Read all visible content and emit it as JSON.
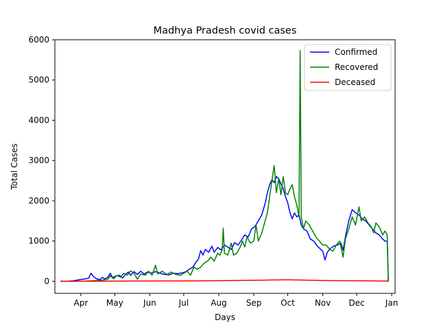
{
  "chart_data": {
    "type": "line",
    "title": "Madhya Pradesh covid cases",
    "xlabel": "Days",
    "ylabel": "Total Cases",
    "xlim": [
      "2020-03-09",
      "2021-01-04"
    ],
    "ylim": [
      -300,
      6000
    ],
    "x_ticks": [
      {
        "date": "2020-04-01",
        "label": "Apr"
      },
      {
        "date": "2020-05-01",
        "label": "May"
      },
      {
        "date": "2020-06-01",
        "label": "Jun"
      },
      {
        "date": "2020-07-01",
        "label": "Jul"
      },
      {
        "date": "2020-08-01",
        "label": "Aug"
      },
      {
        "date": "2020-09-01",
        "label": "Sep"
      },
      {
        "date": "2020-10-01",
        "label": "Oct"
      },
      {
        "date": "2020-11-01",
        "label": "Nov"
      },
      {
        "date": "2020-12-01",
        "label": "Dec"
      },
      {
        "date": "2021-01-01",
        "label": "Jan"
      }
    ],
    "y_ticks": [
      0,
      1000,
      2000,
      3000,
      4000,
      5000,
      6000
    ],
    "legend_position": "top-right",
    "series": [
      {
        "name": "Confirmed",
        "color": "#0000ff",
        "points": [
          [
            "2020-03-14",
            0
          ],
          [
            "2020-03-20",
            2
          ],
          [
            "2020-03-25",
            10
          ],
          [
            "2020-03-31",
            40
          ],
          [
            "2020-04-05",
            60
          ],
          [
            "2020-04-08",
            80
          ],
          [
            "2020-04-10",
            200
          ],
          [
            "2020-04-12",
            120
          ],
          [
            "2020-04-15",
            60
          ],
          [
            "2020-04-18",
            40
          ],
          [
            "2020-04-20",
            100
          ],
          [
            "2020-04-22",
            60
          ],
          [
            "2020-04-25",
            100
          ],
          [
            "2020-04-27",
            200
          ],
          [
            "2020-04-29",
            90
          ],
          [
            "2020-05-02",
            130
          ],
          [
            "2020-05-05",
            150
          ],
          [
            "2020-05-08",
            80
          ],
          [
            "2020-05-10",
            160
          ],
          [
            "2020-05-13",
            230
          ],
          [
            "2020-05-15",
            150
          ],
          [
            "2020-05-18",
            240
          ],
          [
            "2020-05-21",
            170
          ],
          [
            "2020-05-24",
            250
          ],
          [
            "2020-05-27",
            180
          ],
          [
            "2020-05-30",
            230
          ],
          [
            "2020-06-02",
            200
          ],
          [
            "2020-06-06",
            240
          ],
          [
            "2020-06-10",
            200
          ],
          [
            "2020-06-14",
            170
          ],
          [
            "2020-06-18",
            160
          ],
          [
            "2020-06-22",
            200
          ],
          [
            "2020-06-26",
            190
          ],
          [
            "2020-06-30",
            210
          ],
          [
            "2020-07-03",
            240
          ],
          [
            "2020-07-06",
            300
          ],
          [
            "2020-07-09",
            350
          ],
          [
            "2020-07-12",
            480
          ],
          [
            "2020-07-14",
            550
          ],
          [
            "2020-07-16",
            760
          ],
          [
            "2020-07-18",
            650
          ],
          [
            "2020-07-20",
            790
          ],
          [
            "2020-07-23",
            720
          ],
          [
            "2020-07-26",
            870
          ],
          [
            "2020-07-28",
            720
          ],
          [
            "2020-07-31",
            840
          ],
          [
            "2020-08-03",
            780
          ],
          [
            "2020-08-06",
            900
          ],
          [
            "2020-08-09",
            850
          ],
          [
            "2020-08-12",
            790
          ],
          [
            "2020-08-15",
            960
          ],
          [
            "2020-08-18",
            900
          ],
          [
            "2020-08-21",
            1020
          ],
          [
            "2020-08-24",
            1150
          ],
          [
            "2020-08-27",
            1100
          ],
          [
            "2020-08-30",
            1300
          ],
          [
            "2020-09-02",
            1360
          ],
          [
            "2020-09-05",
            1500
          ],
          [
            "2020-09-08",
            1650
          ],
          [
            "2020-09-11",
            1930
          ],
          [
            "2020-09-13",
            2200
          ],
          [
            "2020-09-15",
            2400
          ],
          [
            "2020-09-17",
            2520
          ],
          [
            "2020-09-19",
            2450
          ],
          [
            "2020-09-21",
            2600
          ],
          [
            "2020-09-23",
            2550
          ],
          [
            "2020-09-25",
            2420
          ],
          [
            "2020-09-27",
            2300
          ],
          [
            "2020-09-29",
            2100
          ],
          [
            "2020-10-01",
            1950
          ],
          [
            "2020-10-03",
            1700
          ],
          [
            "2020-10-05",
            1550
          ],
          [
            "2020-10-07",
            1700
          ],
          [
            "2020-10-09",
            1600
          ],
          [
            "2020-10-11",
            1650
          ],
          [
            "2020-10-13",
            1400
          ],
          [
            "2020-10-15",
            1300
          ],
          [
            "2020-10-18",
            1250
          ],
          [
            "2020-10-21",
            1050
          ],
          [
            "2020-10-24",
            1000
          ],
          [
            "2020-10-27",
            880
          ],
          [
            "2020-10-30",
            800
          ],
          [
            "2020-11-01",
            750
          ],
          [
            "2020-11-03",
            530
          ],
          [
            "2020-11-05",
            720
          ],
          [
            "2020-11-08",
            820
          ],
          [
            "2020-11-11",
            880
          ],
          [
            "2020-11-14",
            900
          ],
          [
            "2020-11-17",
            950
          ],
          [
            "2020-11-19",
            770
          ],
          [
            "2020-11-21",
            1100
          ],
          [
            "2020-11-24",
            1500
          ],
          [
            "2020-11-27",
            1780
          ],
          [
            "2020-11-30",
            1700
          ],
          [
            "2020-12-03",
            1650
          ],
          [
            "2020-12-06",
            1550
          ],
          [
            "2020-12-09",
            1500
          ],
          [
            "2020-12-12",
            1400
          ],
          [
            "2020-12-15",
            1300
          ],
          [
            "2020-12-18",
            1200
          ],
          [
            "2020-12-21",
            1150
          ],
          [
            "2020-12-24",
            1050
          ],
          [
            "2020-12-26",
            1000
          ],
          [
            "2020-12-28",
            1000
          ],
          [
            "2020-12-29",
            0
          ]
        ]
      },
      {
        "name": "Recovered",
        "color": "#008000",
        "points": [
          [
            "2020-03-14",
            0
          ],
          [
            "2020-03-25",
            0
          ],
          [
            "2020-04-05",
            5
          ],
          [
            "2020-04-10",
            10
          ],
          [
            "2020-04-15",
            20
          ],
          [
            "2020-04-20",
            30
          ],
          [
            "2020-04-25",
            50
          ],
          [
            "2020-04-27",
            140
          ],
          [
            "2020-04-30",
            60
          ],
          [
            "2020-05-03",
            150
          ],
          [
            "2020-05-06",
            100
          ],
          [
            "2020-05-09",
            200
          ],
          [
            "2020-05-12",
            150
          ],
          [
            "2020-05-15",
            260
          ],
          [
            "2020-05-18",
            200
          ],
          [
            "2020-05-21",
            50
          ],
          [
            "2020-05-24",
            180
          ],
          [
            "2020-05-28",
            150
          ],
          [
            "2020-05-31",
            250
          ],
          [
            "2020-06-03",
            150
          ],
          [
            "2020-06-06",
            400
          ],
          [
            "2020-06-08",
            180
          ],
          [
            "2020-06-12",
            250
          ],
          [
            "2020-06-16",
            170
          ],
          [
            "2020-06-20",
            230
          ],
          [
            "2020-06-24",
            170
          ],
          [
            "2020-06-28",
            150
          ],
          [
            "2020-07-01",
            200
          ],
          [
            "2020-07-04",
            250
          ],
          [
            "2020-07-07",
            150
          ],
          [
            "2020-07-10",
            350
          ],
          [
            "2020-07-13",
            300
          ],
          [
            "2020-07-16",
            350
          ],
          [
            "2020-07-19",
            450
          ],
          [
            "2020-07-22",
            500
          ],
          [
            "2020-07-25",
            600
          ],
          [
            "2020-07-28",
            500
          ],
          [
            "2020-07-31",
            700
          ],
          [
            "2020-08-02",
            650
          ],
          [
            "2020-08-04",
            780
          ],
          [
            "2020-08-05",
            1320
          ],
          [
            "2020-08-06",
            700
          ],
          [
            "2020-08-09",
            650
          ],
          [
            "2020-08-12",
            950
          ],
          [
            "2020-08-14",
            650
          ],
          [
            "2020-08-17",
            700
          ],
          [
            "2020-08-20",
            850
          ],
          [
            "2020-08-22",
            1000
          ],
          [
            "2020-08-24",
            850
          ],
          [
            "2020-08-26",
            1100
          ],
          [
            "2020-08-29",
            950
          ],
          [
            "2020-09-01",
            1000
          ],
          [
            "2020-09-03",
            1400
          ],
          [
            "2020-09-05",
            1000
          ],
          [
            "2020-09-08",
            1200
          ],
          [
            "2020-09-11",
            1500
          ],
          [
            "2020-09-13",
            1700
          ],
          [
            "2020-09-15",
            2100
          ],
          [
            "2020-09-17",
            2500
          ],
          [
            "2020-09-19",
            2870
          ],
          [
            "2020-09-21",
            2200
          ],
          [
            "2020-09-23",
            2550
          ],
          [
            "2020-09-25",
            2150
          ],
          [
            "2020-09-27",
            2600
          ],
          [
            "2020-09-29",
            2200
          ],
          [
            "2020-10-01",
            2150
          ],
          [
            "2020-10-03",
            2300
          ],
          [
            "2020-10-05",
            2400
          ],
          [
            "2020-10-07",
            2100
          ],
          [
            "2020-10-09",
            1900
          ],
          [
            "2020-10-11",
            1600
          ],
          [
            "2020-10-12",
            5730
          ],
          [
            "2020-10-13",
            1600
          ],
          [
            "2020-10-15",
            1300
          ],
          [
            "2020-10-17",
            1500
          ],
          [
            "2020-10-20",
            1400
          ],
          [
            "2020-10-23",
            1250
          ],
          [
            "2020-10-26",
            1100
          ],
          [
            "2020-10-29",
            1000
          ],
          [
            "2020-11-01",
            900
          ],
          [
            "2020-11-04",
            900
          ],
          [
            "2020-11-07",
            800
          ],
          [
            "2020-11-10",
            750
          ],
          [
            "2020-11-13",
            900
          ],
          [
            "2020-11-16",
            1000
          ],
          [
            "2020-11-19",
            600
          ],
          [
            "2020-11-21",
            1050
          ],
          [
            "2020-11-24",
            1300
          ],
          [
            "2020-11-27",
            1600
          ],
          [
            "2020-11-30",
            1400
          ],
          [
            "2020-12-01",
            1550
          ],
          [
            "2020-12-03",
            1850
          ],
          [
            "2020-12-05",
            1500
          ],
          [
            "2020-12-08",
            1600
          ],
          [
            "2020-12-11",
            1450
          ],
          [
            "2020-12-14",
            1350
          ],
          [
            "2020-12-16",
            1200
          ],
          [
            "2020-12-18",
            1450
          ],
          [
            "2020-12-21",
            1350
          ],
          [
            "2020-12-24",
            1150
          ],
          [
            "2020-12-26",
            1250
          ],
          [
            "2020-12-28",
            1150
          ],
          [
            "2020-12-29",
            0
          ]
        ]
      },
      {
        "name": "Deceased",
        "color": "#ff0000",
        "points": [
          [
            "2020-03-14",
            0
          ],
          [
            "2020-04-15",
            3
          ],
          [
            "2020-05-15",
            6
          ],
          [
            "2020-06-15",
            8
          ],
          [
            "2020-07-15",
            12
          ],
          [
            "2020-08-15",
            18
          ],
          [
            "2020-09-01",
            25
          ],
          [
            "2020-09-15",
            32
          ],
          [
            "2020-10-01",
            35
          ],
          [
            "2020-10-15",
            30
          ],
          [
            "2020-11-01",
            20
          ],
          [
            "2020-11-15",
            15
          ],
          [
            "2020-12-01",
            14
          ],
          [
            "2020-12-15",
            12
          ],
          [
            "2020-12-29",
            5
          ]
        ]
      }
    ]
  }
}
